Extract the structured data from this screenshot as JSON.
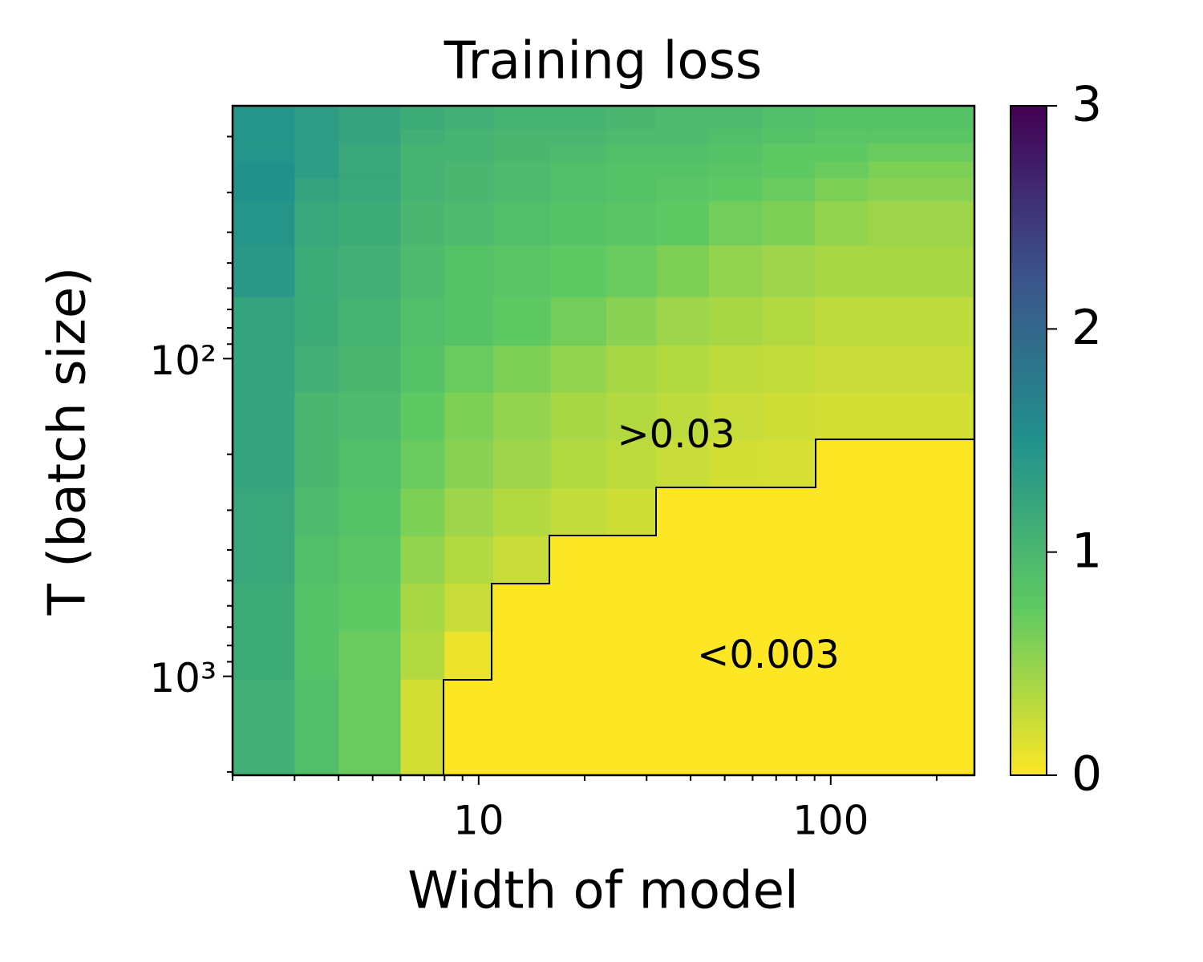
{
  "chart_data": {
    "type": "heatmap",
    "title": "Training loss",
    "x_label": "Width of model",
    "y_label": "T (batch size)",
    "x_scale": "log",
    "y_scale": "log",
    "y_inverted": true,
    "xlim": [
      2,
      256
    ],
    "ylim": [
      16,
      2048
    ],
    "xticks": [
      10,
      100
    ],
    "xminorticks": [
      2,
      3,
      4,
      5,
      6,
      7,
      8,
      9,
      20,
      30,
      40,
      50,
      60,
      70,
      80,
      90,
      200
    ],
    "yticks": [
      {
        "value": 100,
        "label": "10²"
      },
      {
        "value": 1000,
        "label": "10³"
      }
    ],
    "yminorticks": [
      20,
      30,
      40,
      50,
      60,
      70,
      80,
      90,
      200,
      300,
      400,
      500,
      600,
      700,
      800,
      900,
      2000
    ],
    "xbins": [
      2,
      3,
      4,
      6,
      8,
      11,
      16,
      23,
      32,
      45,
      64,
      90,
      128,
      256
    ],
    "ybins": [
      16,
      19,
      21,
      24,
      27,
      32,
      44,
      64,
      91,
      128,
      181,
      256,
      362,
      512,
      724,
      1024,
      2048
    ],
    "values": [
      [
        1.45,
        1.35,
        1.25,
        1.15,
        1.1,
        1.05,
        1.05,
        1.0,
        0.95,
        0.95,
        0.9,
        0.85,
        0.85
      ],
      [
        1.45,
        1.35,
        1.25,
        1.1,
        1.05,
        1.0,
        1.0,
        0.95,
        0.95,
        0.9,
        0.85,
        0.8,
        0.8
      ],
      [
        1.45,
        1.35,
        1.2,
        1.05,
        1.05,
        1.0,
        0.95,
        0.9,
        0.9,
        0.85,
        0.75,
        0.75,
        0.7
      ],
      [
        1.5,
        1.35,
        1.2,
        1.05,
        1.0,
        0.95,
        0.9,
        0.85,
        0.85,
        0.8,
        0.75,
        0.7,
        0.6
      ],
      [
        1.5,
        1.25,
        1.2,
        1.05,
        1.0,
        0.95,
        0.9,
        0.85,
        0.8,
        0.75,
        0.7,
        0.6,
        0.55
      ],
      [
        1.45,
        1.2,
        1.15,
        1.0,
        0.95,
        0.9,
        0.85,
        0.8,
        0.75,
        0.65,
        0.6,
        0.5,
        0.45
      ],
      [
        1.4,
        1.15,
        1.1,
        0.95,
        0.85,
        0.8,
        0.75,
        0.7,
        0.6,
        0.5,
        0.45,
        0.4,
        0.4
      ],
      [
        1.25,
        1.15,
        1.05,
        0.9,
        0.85,
        0.75,
        0.65,
        0.55,
        0.45,
        0.4,
        0.35,
        0.3,
        0.3
      ],
      [
        1.25,
        1.1,
        1.0,
        0.85,
        0.7,
        0.6,
        0.5,
        0.4,
        0.35,
        0.3,
        0.28,
        0.25,
        0.25
      ],
      [
        1.25,
        1.0,
        0.95,
        0.75,
        0.6,
        0.5,
        0.4,
        0.35,
        0.3,
        0.25,
        0.22,
        0.2,
        0.2
      ],
      [
        1.25,
        1.0,
        0.9,
        0.7,
        0.55,
        0.45,
        0.35,
        0.3,
        0.25,
        0.2,
        0.18,
        0.001,
        0.001
      ],
      [
        1.2,
        0.95,
        0.85,
        0.6,
        0.45,
        0.35,
        0.28,
        0.22,
        0.001,
        0.001,
        0.001,
        0.001,
        0.001
      ],
      [
        1.2,
        0.9,
        0.8,
        0.5,
        0.35,
        0.25,
        0.001,
        0.001,
        0.001,
        0.001,
        0.001,
        0.001,
        0.001
      ],
      [
        1.15,
        0.85,
        0.75,
        0.4,
        0.25,
        0.001,
        0.001,
        0.001,
        0.001,
        0.001,
        0.001,
        0.001,
        0.001
      ],
      [
        1.15,
        0.85,
        0.7,
        0.35,
        0.08,
        0.001,
        0.001,
        0.001,
        0.001,
        0.001,
        0.001,
        0.001,
        0.001
      ],
      [
        1.1,
        0.9,
        0.7,
        0.2,
        0.001,
        0.001,
        0.001,
        0.001,
        0.001,
        0.001,
        0.001,
        0.001,
        0.001
      ]
    ],
    "colormap": "viridis_r",
    "clim": [
      0,
      3
    ],
    "cticks": [
      0,
      1,
      2,
      3
    ],
    "annotations": [
      ">0.03",
      "<0.003"
    ]
  }
}
